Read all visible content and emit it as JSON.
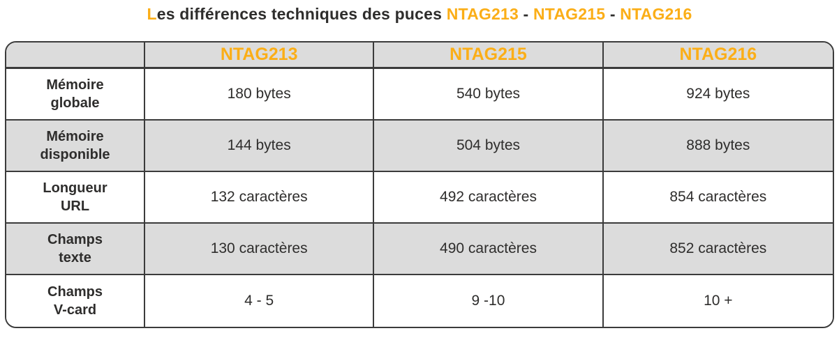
{
  "title": {
    "accent_letter": "L",
    "rest": "es différences techniques des puces",
    "chips": [
      "NTAG213",
      "NTAG215",
      "NTAG216"
    ],
    "separator": "-"
  },
  "colors": {
    "accent_orange": "#fbae17",
    "text_dark": "#2e2d2c",
    "header_and_alt_row_bg": "#dcdcdc",
    "border": "#3b3b3b",
    "background": "#ffffff"
  },
  "table": {
    "headers": [
      "NTAG213",
      "NTAG215",
      "NTAG216"
    ],
    "rows": [
      {
        "label": "Mémoire\nglobale",
        "values": [
          "180 bytes",
          "540 bytes",
          "924 bytes"
        ]
      },
      {
        "label": "Mémoire\ndisponible",
        "values": [
          "144 bytes",
          "504 bytes",
          "888 bytes"
        ]
      },
      {
        "label": "Longueur\nURL",
        "values": [
          "132 caractères",
          "492 caractères",
          "854 caractères"
        ]
      },
      {
        "label": "Champs\ntexte",
        "values": [
          "130 caractères",
          "490 caractères",
          "852 caractères"
        ]
      },
      {
        "label": "Champs\nV-card",
        "values": [
          "4 - 5",
          "9 -10",
          "10 +"
        ]
      }
    ]
  }
}
